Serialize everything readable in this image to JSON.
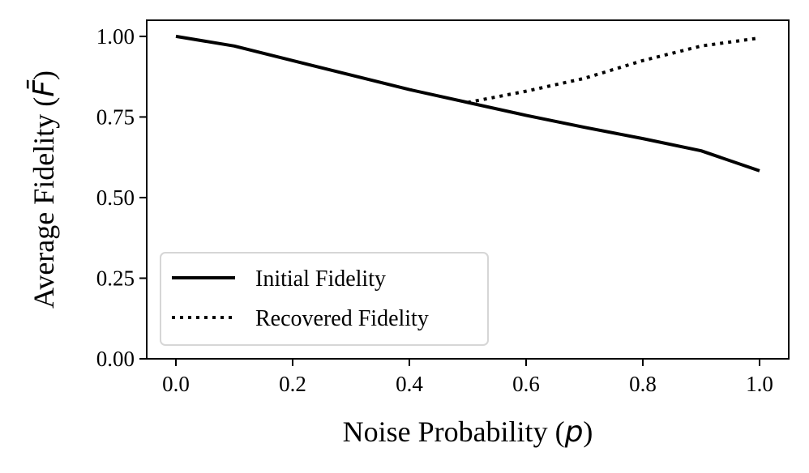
{
  "chart_data": {
    "type": "line",
    "title": "",
    "xlabel": "Noise Probability",
    "xlabel_symbol": "p",
    "ylabel": "Average Fidelity",
    "ylabel_symbol": "F̄",
    "xlim": [
      -0.05,
      1.05
    ],
    "ylim": [
      0,
      1.05
    ],
    "x_ticks": [
      0.0,
      0.2,
      0.4,
      0.6,
      0.8,
      1.0
    ],
    "x_tick_labels": [
      "0.0",
      "0.2",
      "0.4",
      "0.6",
      "0.8",
      "1.0"
    ],
    "y_ticks": [
      0.0,
      0.25,
      0.5,
      0.75,
      1.0
    ],
    "y_tick_labels": [
      "0.00",
      "0.25",
      "0.50",
      "0.75",
      "1.00"
    ],
    "grid": false,
    "legend_position": "lower-left",
    "series": [
      {
        "name": "Initial Fidelity",
        "style": "solid",
        "color": "#000000",
        "x": [
          0.0,
          0.1,
          0.2,
          0.3,
          0.4,
          0.5,
          0.6,
          0.7,
          0.8,
          0.9,
          1.0
        ],
        "y": [
          1.0,
          0.97,
          0.925,
          0.88,
          0.835,
          0.795,
          0.755,
          0.718,
          0.683,
          0.645,
          0.583
        ]
      },
      {
        "name": "Recovered Fidelity",
        "style": "dotted",
        "color": "#000000",
        "x": [
          0.5,
          0.6,
          0.7,
          0.8,
          0.9,
          1.0
        ],
        "y": [
          0.795,
          0.83,
          0.87,
          0.925,
          0.97,
          0.995
        ]
      }
    ]
  }
}
